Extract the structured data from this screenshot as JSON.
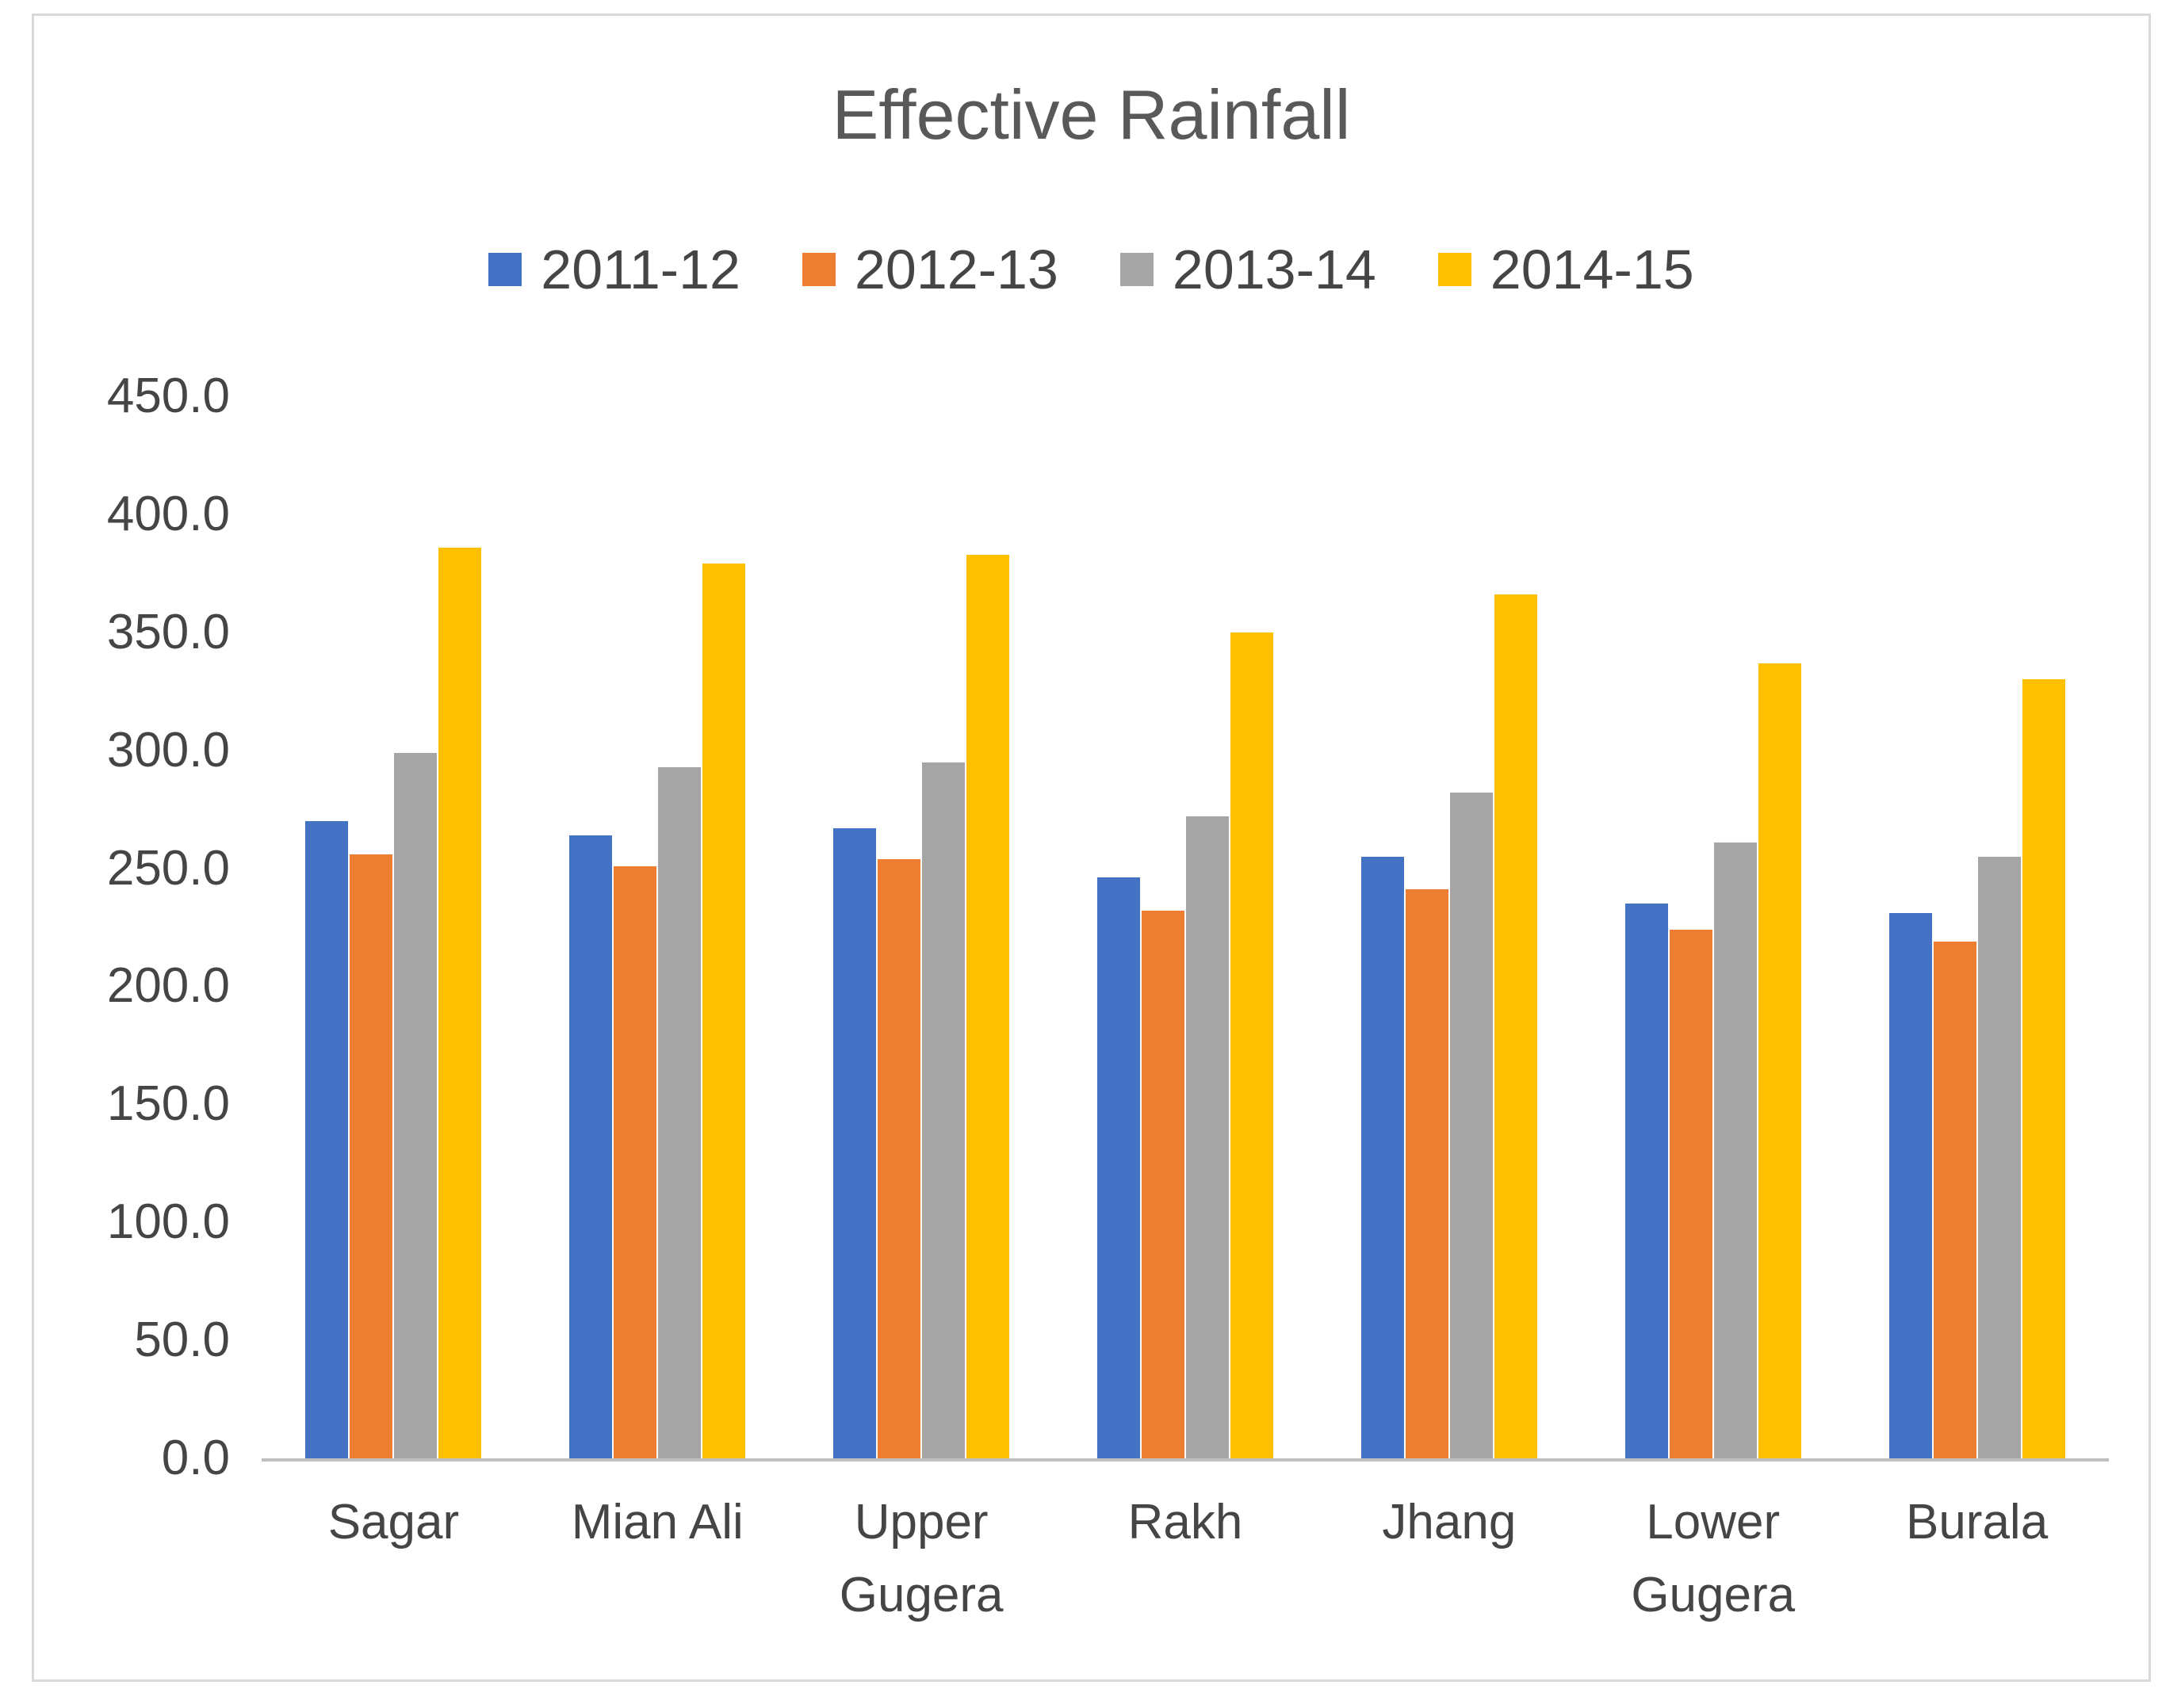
{
  "chart_data": {
    "type": "bar",
    "title": "Effective Rainfall",
    "categories": [
      "Sagar",
      "Mian Ali",
      "Upper Gugera",
      "Rakh",
      "Jhang",
      "Lower Gugera",
      "Burala"
    ],
    "series": [
      {
        "name": "2011-12",
        "color": "#4472C4",
        "values": [
          270,
          264,
          267,
          246,
          255,
          235,
          231
        ]
      },
      {
        "name": "2012-13",
        "color": "#ED7D31",
        "values": [
          256,
          251,
          254,
          232,
          241,
          224,
          219
        ]
      },
      {
        "name": "2013-14",
        "color": "#A5A5A5",
        "values": [
          299,
          293,
          295,
          272,
          282,
          261,
          255
        ]
      },
      {
        "name": "2014-15",
        "color": "#FFC000",
        "values": [
          386,
          379,
          383,
          350,
          366,
          337,
          330
        ]
      }
    ],
    "xlabel": "",
    "ylabel": "",
    "ylim": [
      0,
      450
    ],
    "ytick_step": 50,
    "ytick_labels": [
      "450.0",
      "400.0",
      "350.0",
      "300.0",
      "250.0",
      "200.0",
      "150.0",
      "100.0",
      "50.0",
      "0.0"
    ],
    "grid": false,
    "legend_position": "top",
    "title_color": "#595959",
    "text_color": "#454545",
    "axis_line_color": "#BFBFBF",
    "frame_border_color": "#D9D9D9",
    "background_color": "#FFFFFF"
  }
}
